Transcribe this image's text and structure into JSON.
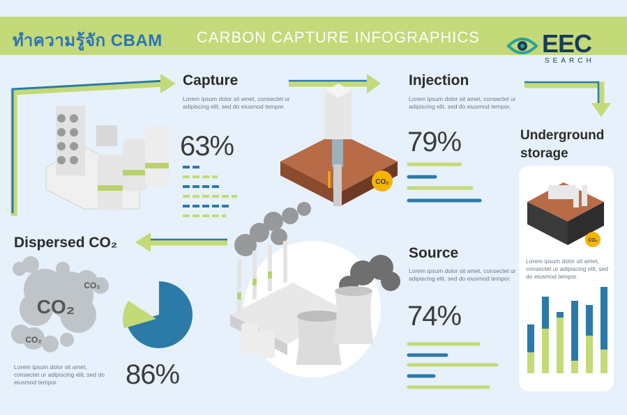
{
  "header": {
    "thai_title": "ทำความรู้จัก CBAM",
    "subtitle": "CARBON CAPTURE INFOGRAPHICS"
  },
  "logo": {
    "name": "EEC",
    "tagline": "SEARCH",
    "icon": "eye-icon"
  },
  "lorem_text": "Lorem ipsum dolor sit amet, consectet ur adipiscing elit, sed do eiusmod tempor.",
  "sections": {
    "capture": {
      "title": "Capture",
      "percent": "63%",
      "value": 63
    },
    "injection": {
      "title": "Injection",
      "percent": "79%",
      "value": 79
    },
    "underground": {
      "title": "Underground storage",
      "co2_badge": "CO₂"
    },
    "dispersed": {
      "title": "Dispersed CO₂",
      "percent": "86%",
      "value": 86,
      "cloud_labels": [
        "CO₂",
        "CO₂",
        "CO₂"
      ]
    },
    "source": {
      "title": "Source",
      "percent": "74%",
      "value": 74
    }
  },
  "injection_badge": "CO₂",
  "colors": {
    "green": "#c4d977",
    "blue": "#2b7aa8",
    "dark_blue": "#1f6b9a",
    "banner_text": "#2a73b8",
    "logo": "#183b5c"
  }
}
